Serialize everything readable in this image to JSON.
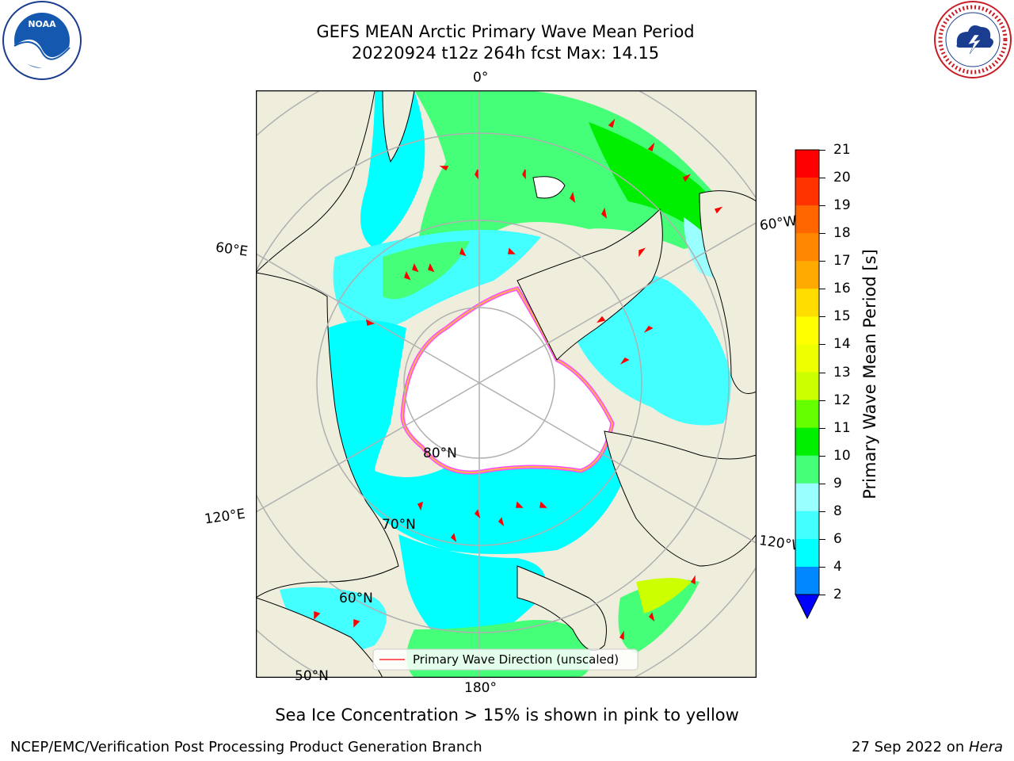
{
  "title": {
    "line1": "GEFS MEAN Arctic Primary Wave Mean Period",
    "line2": "20220924 t12z 264h fcst   Max: 14.15"
  },
  "map": {
    "longitude_labels": [
      "0°",
      "60°E",
      "60°W",
      "120°E",
      "120°W",
      "180°"
    ],
    "latitude_labels": [
      "80°N",
      "70°N",
      "60°N",
      "50°N"
    ],
    "colors": {
      "land": "#efeedd",
      "ice_free_center": "#ffffff",
      "ice_edge_pink": "#ff4dff",
      "ice_edge_orange": "#ffb347",
      "arrow": "#ff0000"
    },
    "legend_label": "Primary Wave Direction (unscaled)"
  },
  "colorbar": {
    "title": "Primary Wave Mean Period [s]",
    "ticks": [
      "21",
      "20",
      "19",
      "18",
      "17",
      "16",
      "15",
      "14",
      "13",
      "12",
      "11",
      "10",
      "9",
      "8",
      "6",
      "4",
      "2"
    ],
    "colors": [
      "#ff0000",
      "#ff3300",
      "#ff6600",
      "#ff8800",
      "#ffaa00",
      "#ffdd00",
      "#ffff00",
      "#eeff00",
      "#ccff00",
      "#66ff00",
      "#00ee00",
      "#44ff77",
      "#99ffff",
      "#44ffff",
      "#00ffff",
      "#0088ff",
      "#0000ff"
    ]
  },
  "caption": "Sea Ice Concentration > 15% is shown in pink to yellow",
  "footer": {
    "left": "NCEP/EMC/Verification Post Processing Product Generation Branch",
    "right_prefix": "27 Sep 2022 on ",
    "right_italic": "Hera"
  },
  "logos": {
    "left": "NOAA",
    "right": "NATIONAL WEATHER SERVICE"
  }
}
